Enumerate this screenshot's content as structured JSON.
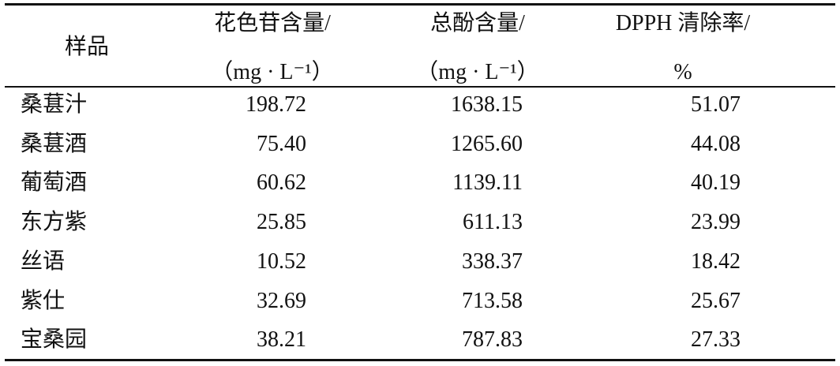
{
  "table": {
    "header": [
      [
        "样品"
      ],
      [
        "花色苷含量/",
        "（mg · L⁻¹）"
      ],
      [
        "总酚含量/",
        "（mg · L⁻¹）"
      ],
      [
        "DPPH 清除率/",
        "%"
      ]
    ],
    "rows": [
      [
        "桑葚汁",
        "198.72",
        "1638.15",
        "51.07"
      ],
      [
        "桑葚酒",
        "75.40",
        "1265.60",
        "44.08"
      ],
      [
        "葡萄酒",
        "60.62",
        "1139.11",
        "40.19"
      ],
      [
        "东方紫",
        "25.85",
        "611.13",
        "23.99"
      ],
      [
        "丝语",
        "10.52",
        "338.37",
        "18.42"
      ],
      [
        "紫仕",
        "32.69",
        "713.58",
        "25.67"
      ],
      [
        "宝桑园",
        "38.21",
        "787.83",
        "27.33"
      ]
    ]
  }
}
